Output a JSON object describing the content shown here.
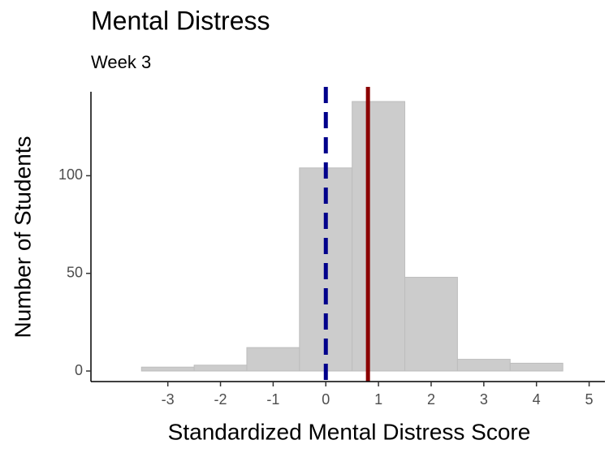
{
  "chart_data": {
    "type": "histogram",
    "title": "Mental Distress",
    "subtitle": "Week 3",
    "xlabel": "Standardized Mental Distress Score",
    "ylabel": "Number of Students",
    "bins": [
      -3.5,
      -2.5,
      -1.5,
      -0.5,
      0.5,
      1.5,
      2.5,
      3.5,
      4.5
    ],
    "values": [
      2,
      3,
      12,
      104,
      138,
      48,
      6,
      4
    ],
    "color": "#cccccc",
    "xlim": [
      -4.46,
      5.3
    ],
    "ylim": [
      -5.4,
      143
    ],
    "xticks": [
      -3,
      -2,
      -1,
      0,
      1,
      2,
      3,
      4,
      5
    ],
    "yticks": [
      0,
      50,
      100
    ],
    "grid": false,
    "vlines": [
      {
        "x": 0,
        "color": "#00008b",
        "style": "dashed"
      },
      {
        "x": 0.8,
        "color": "#8b0000",
        "style": "solid"
      }
    ]
  }
}
